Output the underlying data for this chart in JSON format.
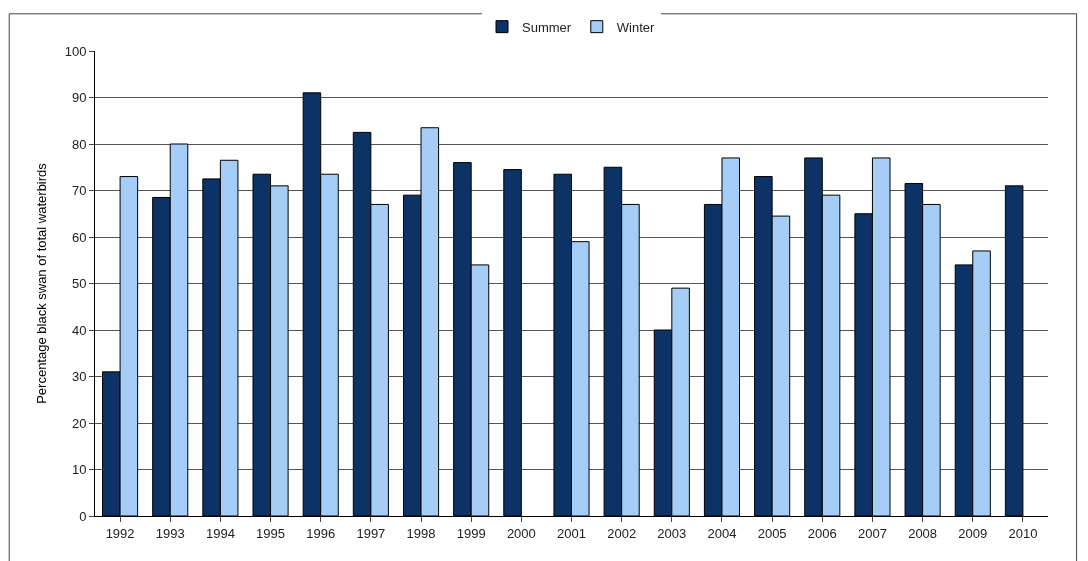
{
  "chart_data": {
    "type": "bar",
    "ylabel": "Percentage black swan of total waterbirds",
    "categories": [
      "1992",
      "1993",
      "1994",
      "1995",
      "1996",
      "1997",
      "1998",
      "1999",
      "2000",
      "2001",
      "2002",
      "2003",
      "2004",
      "2005",
      "2006",
      "2007",
      "2008",
      "2009",
      "2010"
    ],
    "series": [
      {
        "name": "Summer",
        "color": "#0d3366",
        "values": [
          31,
          68.5,
          72.5,
          73.5,
          91,
          82.5,
          69,
          76,
          74.5,
          73.5,
          75,
          40,
          67,
          73,
          77,
          65,
          71.5,
          54,
          71
        ]
      },
      {
        "name": "Winter",
        "color": "#a6cdf5",
        "values": [
          73,
          80,
          76.5,
          71,
          73.5,
          67,
          83.5,
          54,
          null,
          59,
          67,
          49,
          77,
          64.5,
          69,
          77,
          67,
          57,
          null
        ]
      }
    ],
    "ylim": [
      0,
      100
    ],
    "yticks": [
      0,
      10,
      20,
      30,
      40,
      50,
      60,
      70,
      80,
      90,
      100
    ],
    "grid": "y",
    "legend": "top"
  }
}
